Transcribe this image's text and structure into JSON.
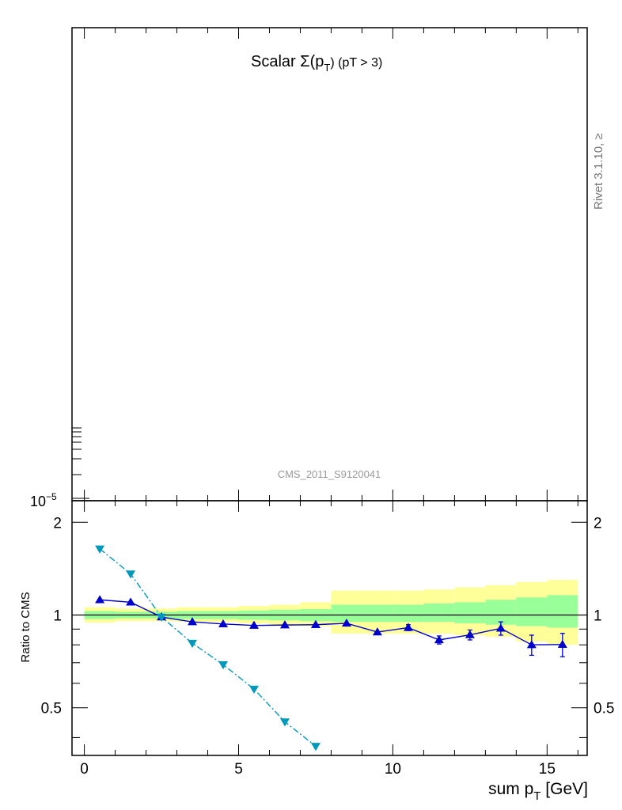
{
  "top_panel": {
    "title_main": "Scalar Σ(p",
    "title_sub": "T",
    "title_tail": ") (pT >  3)",
    "side_label": "Rivet 3.1.10, ≥",
    "analysis_label": "CMS_2011_S9120041",
    "y_axis_label_base": "10",
    "y_axis_label_exp": "−5"
  },
  "ratio_panel": {
    "ylabel": "Ratio to CMS",
    "xlabel_main": "sum p",
    "xlabel_sub": "T",
    "xlabel_tail": " [GeV]"
  },
  "colors": {
    "mc1": "#0000cc",
    "mc2": "#0099bb",
    "band_inner": "#99ff99",
    "band_outer": "#ffff99",
    "reference_line": "#000000"
  },
  "chart_data": {
    "type": "line",
    "xlim": [
      -0.4,
      16.3
    ],
    "ylim": [
      0.35,
      2.35
    ],
    "x_ticks": [
      0,
      5,
      10,
      15
    ],
    "y_ticks": [
      0.5,
      1,
      2
    ],
    "bins": [
      [
        0,
        1
      ],
      [
        1,
        2
      ],
      [
        2,
        3
      ],
      [
        3,
        4
      ],
      [
        4,
        5
      ],
      [
        5,
        6
      ],
      [
        6,
        7
      ],
      [
        7,
        8
      ],
      [
        8,
        9
      ],
      [
        9,
        10
      ],
      [
        10,
        11
      ],
      [
        11,
        12
      ],
      [
        12,
        13
      ],
      [
        13,
        14
      ],
      [
        14,
        15
      ],
      [
        15,
        16
      ]
    ],
    "band_inner": [
      [
        0.97,
        1.03
      ],
      [
        0.975,
        1.025
      ],
      [
        0.975,
        1.025
      ],
      [
        0.97,
        1.03
      ],
      [
        0.97,
        1.03
      ],
      [
        0.965,
        1.035
      ],
      [
        0.96,
        1.04
      ],
      [
        0.955,
        1.045
      ],
      [
        0.95,
        1.08
      ],
      [
        0.95,
        1.08
      ],
      [
        0.95,
        1.08
      ],
      [
        0.95,
        1.09
      ],
      [
        0.94,
        1.1
      ],
      [
        0.93,
        1.12
      ],
      [
        0.92,
        1.14
      ],
      [
        0.91,
        1.16
      ]
    ],
    "band_outer": [
      [
        0.945,
        1.06
      ],
      [
        0.955,
        1.05
      ],
      [
        0.955,
        1.05
      ],
      [
        0.95,
        1.06
      ],
      [
        0.95,
        1.06
      ],
      [
        0.94,
        1.07
      ],
      [
        0.93,
        1.08
      ],
      [
        0.92,
        1.1
      ],
      [
        0.87,
        1.2
      ],
      [
        0.87,
        1.2
      ],
      [
        0.87,
        1.2
      ],
      [
        0.87,
        1.21
      ],
      [
        0.86,
        1.23
      ],
      [
        0.85,
        1.25
      ],
      [
        0.82,
        1.28
      ],
      [
        0.8,
        1.3
      ]
    ],
    "series": [
      {
        "marker": "triangle-up",
        "line": "solid",
        "x": [
          0.5,
          1.5,
          2.5,
          3.5,
          4.5,
          5.5,
          6.5,
          7.5,
          8.5,
          9.5,
          10.5,
          11.5,
          12.5,
          13.5,
          14.5,
          15.5
        ],
        "y": [
          1.12,
          1.1,
          0.985,
          0.95,
          0.935,
          0.925,
          0.928,
          0.93,
          0.94,
          0.88,
          0.91,
          0.83,
          0.862,
          0.905,
          0.8,
          0.802
        ],
        "err": [
          0.01,
          0.01,
          0.01,
          0.01,
          0.01,
          0.01,
          0.01,
          0.01,
          0.012,
          0.015,
          0.02,
          0.025,
          0.032,
          0.045,
          0.06,
          0.07
        ]
      },
      {
        "marker": "triangle-down",
        "line": "dash-dot",
        "x": [
          0.5,
          1.5,
          2.5,
          3.5,
          4.5,
          5.5,
          6.5,
          7.5
        ],
        "y": [
          1.64,
          1.36,
          0.985,
          0.81,
          0.69,
          0.575,
          0.45,
          0.375
        ],
        "err": [
          0,
          0,
          0,
          0,
          0,
          0,
          0,
          0
        ]
      }
    ]
  }
}
